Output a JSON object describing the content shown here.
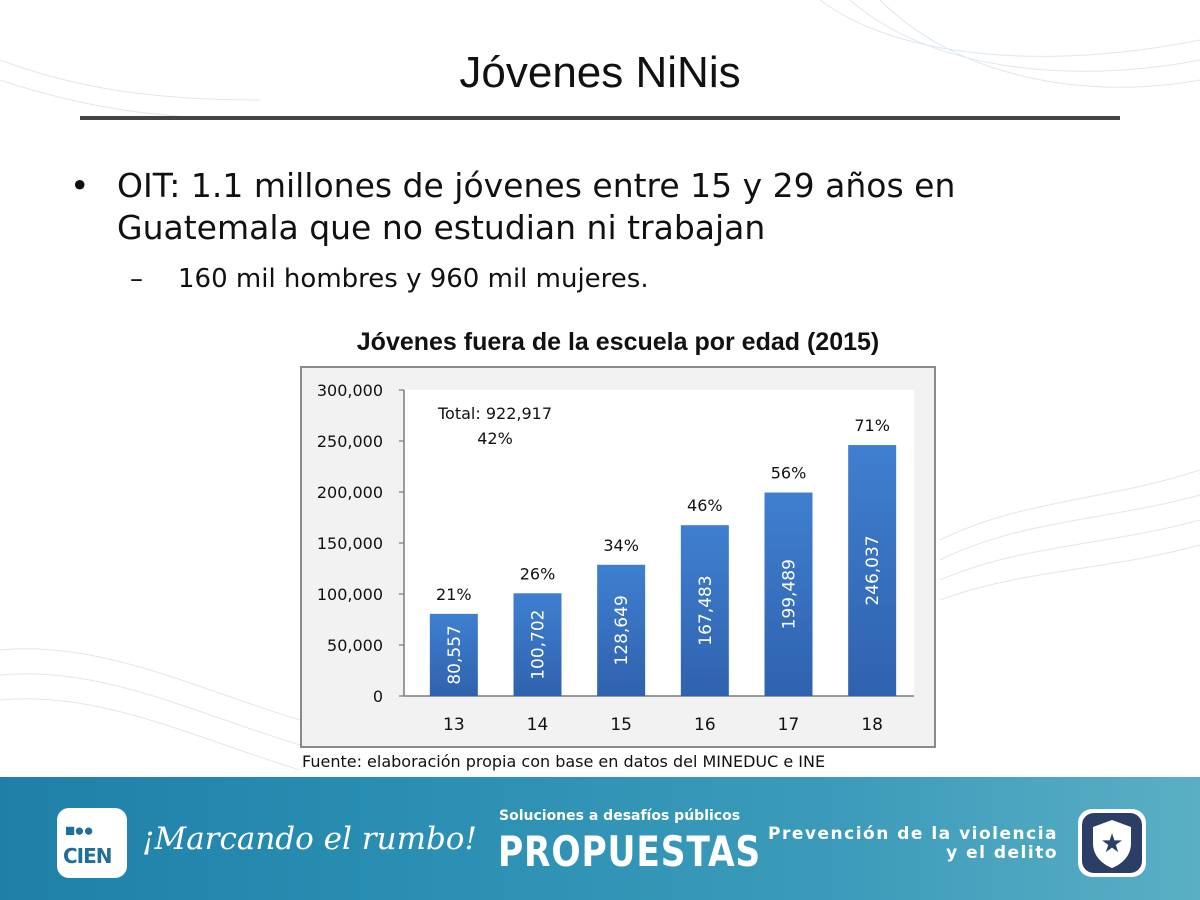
{
  "slide": {
    "title": "Jóvenes NiNis",
    "bullet_symbol": "•",
    "bullet_text": "OIT: 1.1 millones de jóvenes entre 15 y 29 años en Guatemala que no estudian ni trabajan",
    "sub_symbol": "–",
    "sub_bullet": "160 mil hombres y 960 mil mujeres."
  },
  "chart_data": {
    "type": "bar",
    "title": "Jóvenes fuera de la escuela por edad (2015)",
    "categories": [
      "13",
      "14",
      "15",
      "16",
      "17",
      "18"
    ],
    "values": [
      80557,
      100702,
      128649,
      167483,
      199489,
      246037
    ],
    "value_labels": [
      "80,557",
      "100,702",
      "128,649",
      "167,483",
      "199,489",
      "246,037"
    ],
    "percent_labels": [
      "21%",
      "26%",
      "34%",
      "46%",
      "56%",
      "71%"
    ],
    "ylim": [
      0,
      300000
    ],
    "yticks": [
      "0",
      "50,000",
      "100,000",
      "150,000",
      "200,000",
      "250,000",
      "300,000"
    ],
    "annotation": {
      "line1": "Total: 922,917",
      "line2": "42%"
    },
    "xlabel": "",
    "ylabel": "",
    "grid": false,
    "bar_color": "#3a75c4"
  },
  "source": "Fuente: elaboración propia con base en datos del MINEDUC e INE",
  "footer": {
    "logo_dots": "■●●",
    "logo_word": "CIEN",
    "slogan": "¡Marcando el rumbo!",
    "propuestas_sub": "Soluciones a desafíos públicos",
    "propuestas_main": "PROPUESTAS",
    "prevencion_line1": "Prevención de la violencia",
    "prevencion_line2": "y el delito",
    "star_icon": "★"
  }
}
